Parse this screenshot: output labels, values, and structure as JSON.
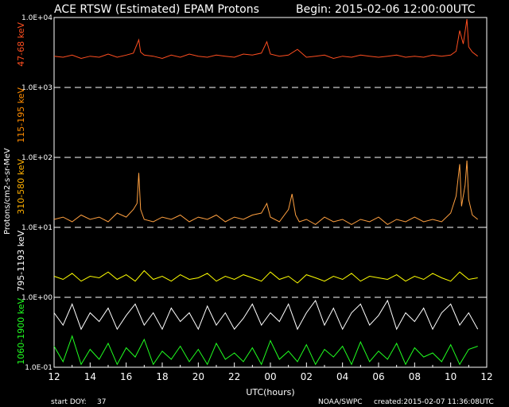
{
  "title_left": "ACE RTSW (Estimated) EPAM Protons",
  "title_right": "Begin: 2015-02-06 12:00:00UTC",
  "footer": {
    "start_doy_label": "start DOY:",
    "start_doy_value": "37",
    "agency": "NOAA/SWPC",
    "created": "created:2015-02-07 11:36:08UTC"
  },
  "chart_data": {
    "type": "line",
    "title": "ACE RTSW (Estimated) EPAM Protons",
    "begin": "2015-02-06 12:00:00UTC",
    "xlabel": "UTC(hours)",
    "ylabel": "Protons/cm2-s-sr-MeV",
    "x_ticks": [
      "12",
      "14",
      "16",
      "18",
      "20",
      "22",
      "00",
      "02",
      "04",
      "06",
      "08",
      "10",
      "12"
    ],
    "y_scale": "log",
    "ylim": [
      0.1,
      10000
    ],
    "y_ticks": [
      "1.0E-01",
      "1.0E+00",
      "1.0E+01",
      "1.0E+02",
      "1.0E+03",
      "1.0E+04"
    ],
    "grid": "dashed horizontal lines at each decade",
    "channel_labels": [
      {
        "text": "47-68 keV",
        "color": "#ff4e20"
      },
      {
        "text": "115-195 keV",
        "color": "#ff8c00"
      },
      {
        "text": "310-580 keV",
        "color": "#ffb000"
      },
      {
        "text": "795-1193 keV",
        "color": "#ffffff"
      },
      {
        "text": "1060-1900 keV",
        "color": "#20ff20"
      }
    ],
    "series": [
      {
        "name": "47-68 keV",
        "color": "#ff4e20",
        "x": [
          12.0,
          12.5,
          13.0,
          13.5,
          14.0,
          14.5,
          15.0,
          15.5,
          16.0,
          16.4,
          16.7,
          16.8,
          17.0,
          17.5,
          18.0,
          18.5,
          19.0,
          19.5,
          20.0,
          20.5,
          21.0,
          21.5,
          22.0,
          22.5,
          23.0,
          23.5,
          23.8,
          24.0,
          24.5,
          25.0,
          25.5,
          26.0,
          26.5,
          27.0,
          27.5,
          28.0,
          28.5,
          29.0,
          29.5,
          30.0,
          30.5,
          31.0,
          31.5,
          32.0,
          32.5,
          33.0,
          33.5,
          34.0,
          34.3,
          34.5,
          34.7,
          34.9,
          35.0,
          35.2,
          35.5
        ],
        "values": [
          2800,
          2700,
          2900,
          2600,
          2800,
          2700,
          3000,
          2700,
          2900,
          3100,
          4800,
          3200,
          2900,
          2800,
          2600,
          2900,
          2700,
          3000,
          2800,
          2700,
          2900,
          2800,
          2700,
          3000,
          2900,
          3100,
          4500,
          3000,
          2800,
          2900,
          3500,
          2700,
          2800,
          2900,
          2600,
          2800,
          2700,
          2900,
          2800,
          2700,
          2800,
          2900,
          2700,
          2800,
          2700,
          2900,
          2800,
          2900,
          3300,
          6500,
          4200,
          9500,
          3800,
          3200,
          2800
        ]
      },
      {
        "name": "310-580 keV",
        "color": "#ffa040",
        "x": [
          12.0,
          12.5,
          13.0,
          13.5,
          14.0,
          14.5,
          15.0,
          15.5,
          16.0,
          16.4,
          16.6,
          16.7,
          16.8,
          17.0,
          17.5,
          18.0,
          18.5,
          19.0,
          19.5,
          20.0,
          20.5,
          21.0,
          21.5,
          22.0,
          22.5,
          23.0,
          23.5,
          23.8,
          24.0,
          24.5,
          25.0,
          25.2,
          25.4,
          25.6,
          26.0,
          26.5,
          27.0,
          27.5,
          28.0,
          28.5,
          29.0,
          29.5,
          30.0,
          30.5,
          31.0,
          31.5,
          32.0,
          32.5,
          33.0,
          33.5,
          34.0,
          34.3,
          34.5,
          34.6,
          34.8,
          34.9,
          35.0,
          35.2,
          35.5
        ],
        "values": [
          13,
          14,
          12,
          15,
          13,
          14,
          12,
          16,
          14,
          18,
          22,
          60,
          18,
          13,
          12,
          14,
          13,
          15,
          12,
          14,
          13,
          15,
          12,
          14,
          13,
          15,
          16,
          22,
          14,
          12,
          18,
          30,
          15,
          12,
          13,
          11,
          14,
          12,
          13,
          11,
          13,
          12,
          14,
          11,
          13,
          12,
          14,
          12,
          13,
          12,
          16,
          28,
          80,
          20,
          40,
          90,
          25,
          15,
          13
        ]
      },
      {
        "name": "795-1193 keV",
        "color": "#ffff00",
        "x": [
          12.0,
          12.5,
          13.0,
          13.5,
          14.0,
          14.5,
          15.0,
          15.5,
          16.0,
          16.5,
          17.0,
          17.5,
          18.0,
          18.5,
          19.0,
          19.5,
          20.0,
          20.5,
          21.0,
          21.5,
          22.0,
          22.5,
          23.0,
          23.5,
          24.0,
          24.5,
          25.0,
          25.5,
          26.0,
          26.5,
          27.0,
          27.5,
          28.0,
          28.5,
          29.0,
          29.5,
          30.0,
          30.5,
          31.0,
          31.5,
          32.0,
          32.5,
          33.0,
          33.5,
          34.0,
          34.5,
          35.0,
          35.5
        ],
        "values": [
          2.0,
          1.8,
          2.2,
          1.7,
          2.0,
          1.9,
          2.3,
          1.8,
          2.1,
          1.7,
          2.4,
          1.8,
          2.0,
          1.7,
          2.1,
          1.8,
          1.9,
          2.2,
          1.7,
          2.0,
          1.8,
          2.1,
          1.9,
          1.7,
          2.3,
          1.8,
          2.0,
          1.6,
          2.1,
          1.9,
          1.7,
          2.0,
          1.8,
          2.2,
          1.7,
          2.0,
          1.9,
          1.8,
          2.1,
          1.7,
          2.0,
          1.8,
          2.2,
          1.9,
          1.7,
          2.3,
          1.8,
          1.9
        ]
      },
      {
        "name": "1060-1900 keV",
        "color": "#ffffff",
        "x": [
          12.0,
          12.5,
          13.0,
          13.5,
          14.0,
          14.5,
          15.0,
          15.5,
          16.0,
          16.5,
          17.0,
          17.5,
          18.0,
          18.5,
          19.0,
          19.5,
          20.0,
          20.5,
          21.0,
          21.5,
          22.0,
          22.5,
          23.0,
          23.5,
          24.0,
          24.5,
          25.0,
          25.5,
          26.0,
          26.5,
          27.0,
          27.5,
          28.0,
          28.5,
          29.0,
          29.5,
          30.0,
          30.5,
          31.0,
          31.5,
          32.0,
          32.5,
          33.0,
          33.5,
          34.0,
          34.5,
          35.0,
          35.5
        ],
        "values": [
          0.6,
          0.4,
          0.8,
          0.35,
          0.6,
          0.45,
          0.7,
          0.35,
          0.55,
          0.8,
          0.4,
          0.6,
          0.35,
          0.7,
          0.45,
          0.6,
          0.35,
          0.75,
          0.4,
          0.6,
          0.35,
          0.5,
          0.8,
          0.4,
          0.6,
          0.45,
          0.8,
          0.35,
          0.6,
          0.9,
          0.4,
          0.7,
          0.35,
          0.6,
          0.8,
          0.4,
          0.55,
          0.9,
          0.35,
          0.6,
          0.45,
          0.7,
          0.35,
          0.6,
          0.8,
          0.4,
          0.6,
          0.35
        ]
      },
      {
        "name": "1060-1900 keV (green)",
        "color": "#20ff20",
        "x": [
          12.0,
          12.5,
          13.0,
          13.5,
          14.0,
          14.5,
          15.0,
          15.5,
          16.0,
          16.5,
          17.0,
          17.5,
          18.0,
          18.5,
          19.0,
          19.5,
          20.0,
          20.5,
          21.0,
          21.5,
          22.0,
          22.5,
          23.0,
          23.5,
          24.0,
          24.5,
          25.0,
          25.5,
          26.0,
          26.5,
          27.0,
          27.5,
          28.0,
          28.5,
          29.0,
          29.5,
          30.0,
          30.5,
          31.0,
          31.5,
          32.0,
          32.5,
          33.0,
          33.5,
          34.0,
          34.5,
          35.0,
          35.5
        ],
        "values": [
          0.2,
          0.12,
          0.28,
          0.11,
          0.18,
          0.13,
          0.22,
          0.11,
          0.19,
          0.14,
          0.25,
          0.11,
          0.17,
          0.13,
          0.2,
          0.12,
          0.18,
          0.11,
          0.22,
          0.13,
          0.16,
          0.12,
          0.19,
          0.11,
          0.24,
          0.13,
          0.17,
          0.12,
          0.21,
          0.11,
          0.18,
          0.14,
          0.2,
          0.11,
          0.23,
          0.12,
          0.17,
          0.13,
          0.22,
          0.11,
          0.19,
          0.14,
          0.16,
          0.12,
          0.21,
          0.11,
          0.18,
          0.2
        ]
      }
    ]
  }
}
